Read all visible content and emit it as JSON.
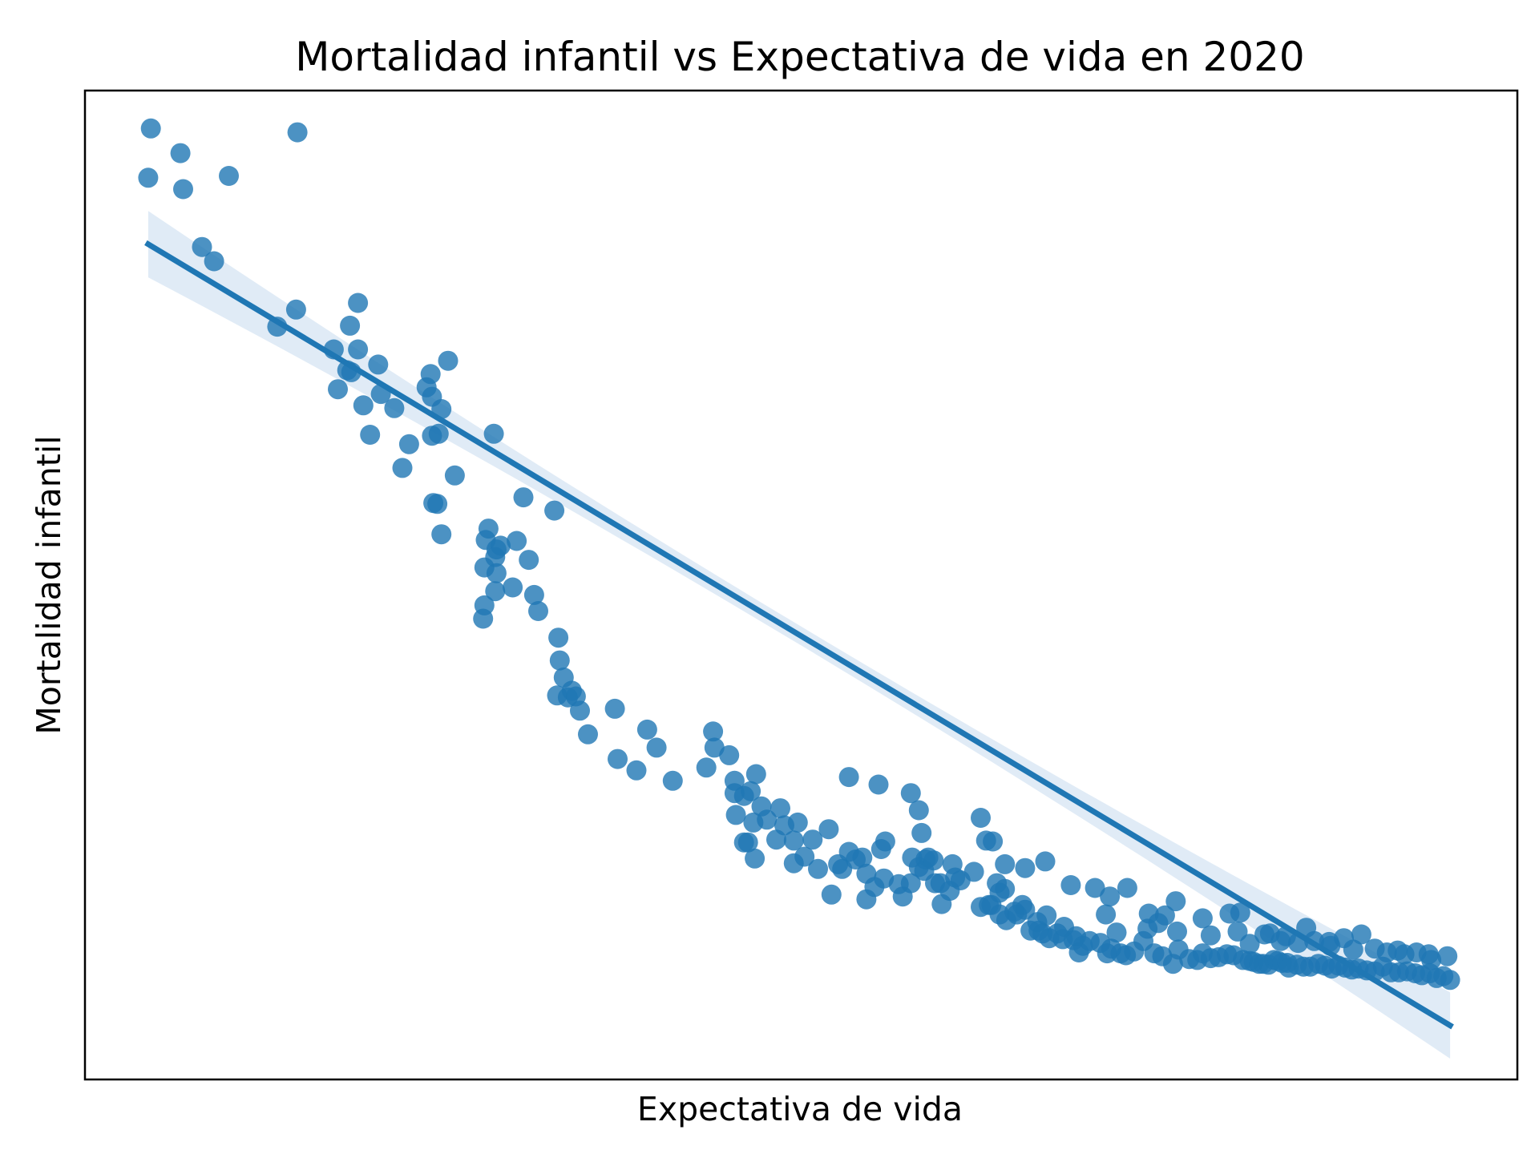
{
  "chart_data": {
    "type": "scatter",
    "title": "Mortalidad infantil vs Expectativa de vida en 2020",
    "xlabel": "Expectativa de vida",
    "ylabel": "Mortalidad infantil",
    "grid": false,
    "ticks_shown": false,
    "colors": {
      "points": "#1f77b4",
      "regression_line": "#1f77b4",
      "confidence_band": "#c6dbef"
    },
    "x": [
      0.034,
      0.032,
      0.056,
      0.058,
      0.072,
      0.081,
      0.092,
      0.128,
      0.142,
      0.143,
      0.188,
      0.17,
      0.188,
      0.182,
      0.173,
      0.18,
      0.192,
      0.203,
      0.197,
      0.183,
      0.205,
      0.221,
      0.226,
      0.215,
      0.243,
      0.239,
      0.25,
      0.243,
      0.248,
      0.242,
      0.255,
      0.26,
      0.244,
      0.247,
      0.25,
      0.283,
      0.289,
      0.294,
      0.29,
      0.291,
      0.311,
      0.282,
      0.285,
      0.306,
      0.291,
      0.29,
      0.303,
      0.281,
      0.282,
      0.334,
      0.315,
      0.319,
      0.322,
      0.337,
      0.338,
      0.336,
      0.341,
      0.344,
      0.35,
      0.347,
      0.353,
      0.359,
      0.381,
      0.379,
      0.41,
      0.403,
      0.395,
      0.422,
      0.447,
      0.452,
      0.453,
      0.464,
      0.468,
      0.48,
      0.468,
      0.469,
      0.475,
      0.484,
      0.488,
      0.482,
      0.492,
      0.499,
      0.502,
      0.505,
      0.515,
      0.512,
      0.53,
      0.54,
      0.538,
      0.548,
      0.563,
      0.566,
      0.572,
      0.579,
      0.59,
      0.593,
      0.605,
      0.612,
      0.61,
      0.617,
      0.621,
      0.622,
      0.63,
      0.636,
      0.646,
      0.651,
      0.659,
      0.665,
      0.67,
      0.676,
      0.669,
      0.678,
      0.684,
      0.688,
      0.694,
      0.693,
      0.697,
      0.702,
      0.708,
      0.712,
      0.722,
      0.724,
      0.727,
      0.732,
      0.74,
      0.745,
      0.748,
      0.755,
      0.759,
      0.765,
      0.772,
      0.78,
      0.786,
      0.794,
      0.798,
      0.806,
      0.812,
      0.816,
      0.822,
      0.828,
      0.834,
      0.839,
      0.846,
      0.851,
      0.854,
      0.858,
      0.861,
      0.865,
      0.869,
      0.872,
      0.875,
      0.879,
      0.88,
      0.886,
      0.891,
      0.896,
      0.902,
      0.907,
      0.912,
      0.917,
      0.922,
      0.927,
      0.932,
      0.938,
      0.944,
      0.95,
      0.956,
      0.962,
      0.968,
      0.974,
      0.979,
      0.985,
      0.99,
      0.995,
      1.0,
      0.475,
      0.478,
      0.483,
      0.52,
      0.512,
      0.526,
      0.545,
      0.553,
      0.558,
      0.566,
      0.577,
      0.58,
      0.6,
      0.599,
      0.609,
      0.616,
      0.628,
      0.632,
      0.657,
      0.663,
      0.665,
      0.682,
      0.7,
      0.713,
      0.72,
      0.744,
      0.752,
      0.775,
      0.783,
      0.797,
      0.822,
      0.842,
      0.851,
      0.862,
      0.878,
      0.887,
      0.899,
      0.911,
      0.928,
      0.944,
      0.961,
      0.975,
      0.984,
      0.998,
      0.553,
      0.575,
      0.599,
      0.605,
      0.607,
      0.651,
      0.655,
      0.66,
      0.669,
      0.684,
      0.699,
      0.718,
      0.736,
      0.747,
      0.76,
      0.776,
      0.788,
      0.796,
      0.816,
      0.836,
      0.844,
      0.866,
      0.874,
      0.893,
      0.91,
      0.921,
      0.934,
      0.953,
      0.966,
      0.986
    ],
    "y": [
      0.995,
      0.943,
      0.969,
      0.931,
      0.87,
      0.855,
      0.945,
      0.786,
      0.804,
      0.991,
      0.811,
      0.762,
      0.762,
      0.787,
      0.72,
      0.74,
      0.703,
      0.746,
      0.672,
      0.738,
      0.715,
      0.637,
      0.662,
      0.7,
      0.712,
      0.722,
      0.699,
      0.671,
      0.673,
      0.736,
      0.75,
      0.629,
      0.6,
      0.599,
      0.567,
      0.561,
      0.673,
      0.555,
      0.543,
      0.551,
      0.606,
      0.532,
      0.573,
      0.56,
      0.526,
      0.507,
      0.511,
      0.478,
      0.492,
      0.592,
      0.54,
      0.503,
      0.486,
      0.458,
      0.434,
      0.397,
      0.416,
      0.395,
      0.396,
      0.402,
      0.381,
      0.356,
      0.33,
      0.383,
      0.342,
      0.361,
      0.318,
      0.307,
      0.321,
      0.359,
      0.342,
      0.334,
      0.307,
      0.296,
      0.294,
      0.271,
      0.291,
      0.314,
      0.28,
      0.263,
      0.266,
      0.245,
      0.278,
      0.26,
      0.263,
      0.22,
      0.214,
      0.187,
      0.256,
      0.214,
      0.226,
      0.182,
      0.195,
      0.204,
      0.198,
      0.185,
      0.216,
      0.226,
      0.224,
      0.199,
      0.199,
      0.177,
      0.219,
      0.202,
      0.211,
      0.174,
      0.176,
      0.166,
      0.16,
      0.169,
      0.193,
      0.166,
      0.171,
      0.149,
      0.149,
      0.158,
      0.146,
      0.141,
      0.146,
      0.14,
      0.143,
      0.126,
      0.133,
      0.138,
      0.136,
      0.125,
      0.13,
      0.125,
      0.123,
      0.127,
      0.138,
      0.125,
      0.122,
      0.114,
      0.129,
      0.119,
      0.118,
      0.125,
      0.12,
      0.121,
      0.124,
      0.123,
      0.118,
      0.117,
      0.116,
      0.114,
      0.114,
      0.113,
      0.118,
      0.117,
      0.115,
      0.115,
      0.11,
      0.113,
      0.111,
      0.111,
      0.114,
      0.112,
      0.109,
      0.112,
      0.11,
      0.108,
      0.109,
      0.107,
      0.106,
      0.111,
      0.105,
      0.105,
      0.106,
      0.104,
      0.102,
      0.104,
      0.099,
      0.101,
      0.097,
      0.242,
      0.242,
      0.225,
      0.227,
      0.244,
      0.245,
      0.219,
      0.232,
      0.224,
      0.209,
      0.235,
      0.243,
      0.226,
      0.199,
      0.212,
      0.223,
      0.191,
      0.205,
      0.176,
      0.199,
      0.189,
      0.176,
      0.165,
      0.153,
      0.139,
      0.166,
      0.147,
      0.151,
      0.157,
      0.148,
      0.144,
      0.148,
      0.135,
      0.145,
      0.143,
      0.136,
      0.138,
      0.133,
      0.129,
      0.13,
      0.128,
      0.126,
      0.124,
      0.122,
      0.311,
      0.303,
      0.294,
      0.276,
      0.252,
      0.268,
      0.244,
      0.243,
      0.219,
      0.215,
      0.222,
      0.197,
      0.194,
      0.185,
      0.194,
      0.167,
      0.165,
      0.18,
      0.162,
      0.167,
      0.168,
      0.146,
      0.138,
      0.152,
      0.137,
      0.141,
      0.145,
      0.126,
      0.124,
      0.118
    ],
    "regression": {
      "x_start": 0.032,
      "y_start": 0.873,
      "x_end": 1.0,
      "y_end": 0.049,
      "ci_halfwidth_ends": 0.035,
      "ci_halfwidth_middle": 0.01
    },
    "xlim": [
      -0.015,
      1.05
    ],
    "ylim": [
      -0.008,
      1.035
    ]
  }
}
